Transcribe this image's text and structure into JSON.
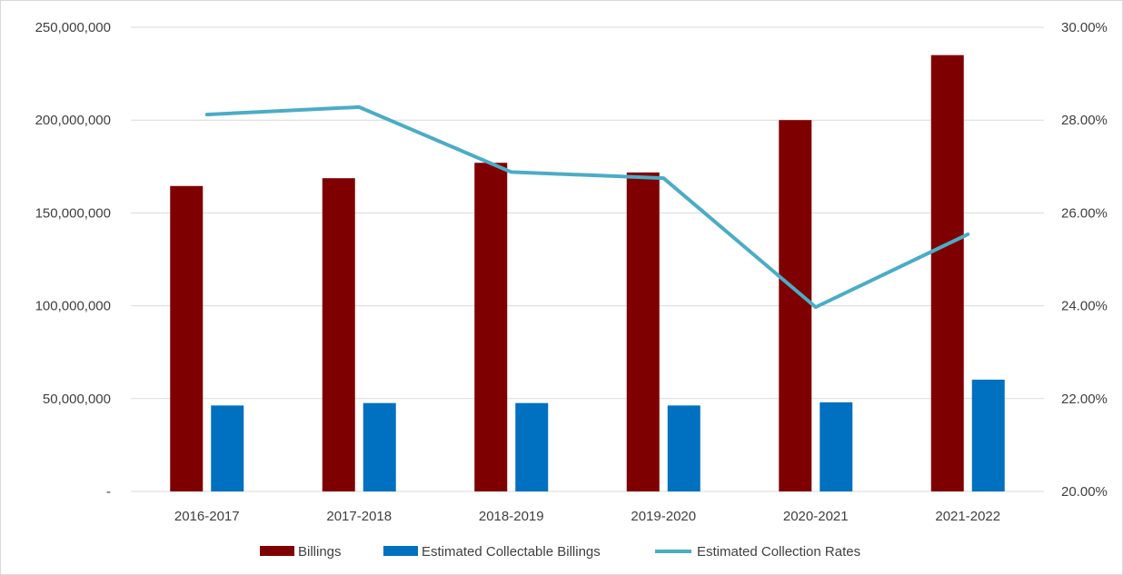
{
  "chart_data": {
    "type": "bar",
    "categories": [
      "2016-2017",
      "2017-2018",
      "2018-2019",
      "2019-2020",
      "2020-2021",
      "2021-2022"
    ],
    "series": [
      {
        "name": "Billings",
        "type": "bar",
        "axis": "left",
        "color": "#7f0000",
        "values": [
          164500000,
          168700000,
          177000000,
          171800000,
          200000000,
          235000000
        ]
      },
      {
        "name": "Estimated Collectable Billings",
        "type": "bar",
        "axis": "left",
        "color": "#0070c0",
        "values": [
          46300000,
          47600000,
          47600000,
          46300000,
          48000000,
          60200000
        ]
      },
      {
        "name": "Estimated Collection Rates",
        "type": "line",
        "axis": "right",
        "color": "#4bacc6",
        "values": [
          0.2812,
          0.2828,
          0.2688,
          0.2675,
          0.2397,
          0.2554
        ]
      }
    ],
    "y_left": {
      "min": 0,
      "max": 250000000,
      "ticks": [
        "-",
        "50,000,000",
        "100,000,000",
        "150,000,000",
        "200,000,000",
        "250,000,000"
      ]
    },
    "y_right": {
      "min": 0.2,
      "max": 0.3,
      "ticks": [
        "20.00%",
        "22.00%",
        "24.00%",
        "26.00%",
        "28.00%",
        "30.00%"
      ]
    },
    "grid": true,
    "legend": "bottom"
  }
}
